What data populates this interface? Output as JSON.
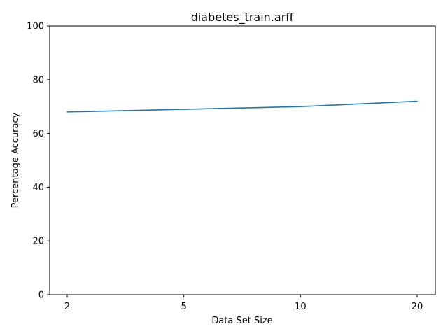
{
  "chart_data": {
    "type": "line",
    "title": "diabetes_train.arff",
    "xlabel": "Data Set Size",
    "ylabel": "Percentage Accuracy",
    "categories": [
      "2",
      "5",
      "10",
      "20"
    ],
    "series": [
      {
        "values": [
          68,
          69,
          70,
          72
        ],
        "color": "#1f77b4"
      }
    ],
    "ylim": [
      0,
      100
    ],
    "yticks": [
      0,
      20,
      40,
      60,
      80,
      100
    ],
    "grid": false,
    "legend": "none"
  }
}
